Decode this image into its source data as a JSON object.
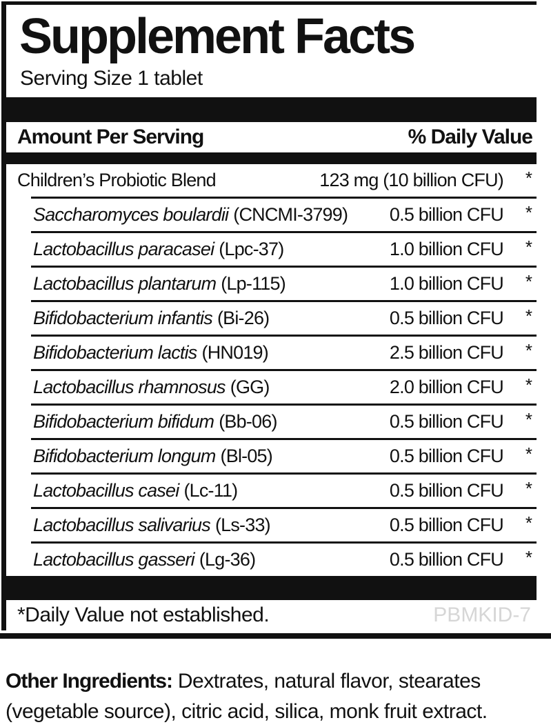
{
  "label": {
    "title": "Supplement Facts",
    "serving_size": "Serving Size 1 tablet",
    "columns": {
      "amount_header": "Amount Per Serving",
      "dv_header": "% Daily Value"
    },
    "blend": {
      "name": "Children’s Probiotic Blend",
      "amount": "123 mg (10 billion CFU)",
      "dv": "*"
    },
    "ingredients": [
      {
        "species": "Saccharomyces boulardii",
        "strain": "(CNCMI-3799)",
        "amount": "0.5 billion CFU",
        "dv": "*"
      },
      {
        "species": "Lactobacillus paracasei",
        "strain": "(Lpc-37)",
        "amount": "1.0 billion CFU",
        "dv": "*"
      },
      {
        "species": "Lactobacillus plantarum",
        "strain": "(Lp-115)",
        "amount": "1.0 billion CFU",
        "dv": "*"
      },
      {
        "species": "Bifidobacterium infantis",
        "strain": "(Bi-26)",
        "amount": "0.5 billion CFU",
        "dv": "*"
      },
      {
        "species": "Bifidobacterium lactis",
        "strain": "(HN019)",
        "amount": "2.5 billion CFU",
        "dv": "*"
      },
      {
        "species": "Lactobacillus rhamnosus",
        "strain": "(GG)",
        "amount": "2.0 billion CFU",
        "dv": "*"
      },
      {
        "species": "Bifidobacterium bifidum",
        "strain": "(Bb-06)",
        "amount": "0.5 billion CFU",
        "dv": "*"
      },
      {
        "species": "Bifidobacterium longum",
        "strain": "(Bl-05)",
        "amount": "0.5 billion CFU",
        "dv": "*"
      },
      {
        "species": "Lactobacillus casei",
        "strain": "(Lc-11)",
        "amount": "0.5 billion CFU",
        "dv": "*"
      },
      {
        "species": "Lactobacillus salivarius",
        "strain": "(Ls-33)",
        "amount": "0.5 billion CFU",
        "dv": "*"
      },
      {
        "species": "Lactobacillus gasseri",
        "strain": "(Lg-36)",
        "amount": "0.5 billion CFU",
        "dv": "*"
      }
    ],
    "footnote": "*Daily Value not established.",
    "product_code": "PBMKID-7",
    "other_ingredients": {
      "heading": "Other Ingredients:",
      "text": " Dextrates, natural flavor, stearates (vegetable source), citric acid, silica, monk fruit extract."
    },
    "colors": {
      "ink": "#111111",
      "product_code_gray": "#d6d6d6",
      "background": "#ffffff"
    }
  }
}
